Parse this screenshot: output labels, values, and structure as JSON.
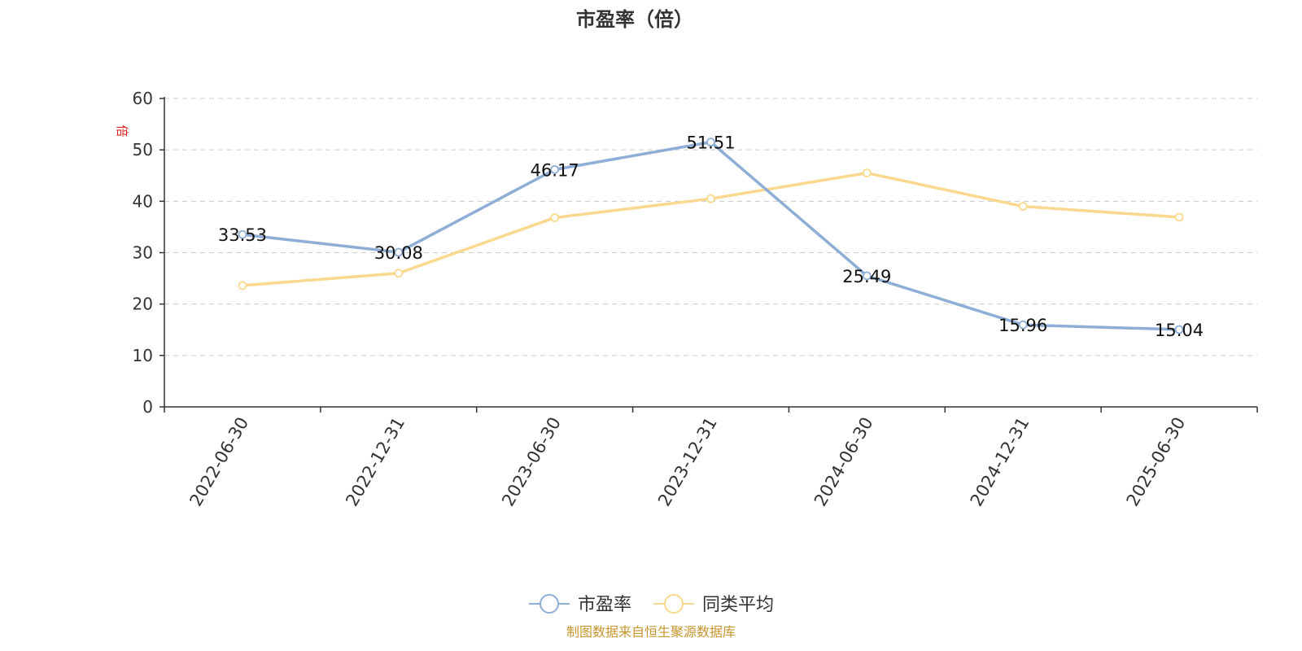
{
  "colors": {
    "pe": "#8eaed8",
    "avg": "#fbd88f",
    "unit": "#e0201e",
    "source": "#c8952f"
  },
  "chart_data": {
    "type": "line",
    "title": "市盈率（倍）",
    "ylabel": "倍",
    "ylim": [
      0,
      60
    ],
    "yticks": [
      0,
      10,
      20,
      30,
      40,
      50,
      60
    ],
    "grid": true,
    "categories": [
      "2022-06-30",
      "2022-12-31",
      "2023-06-30",
      "2023-12-31",
      "2024-06-30",
      "2024-12-31",
      "2025-06-30"
    ],
    "series": [
      {
        "name": "市盈率",
        "values": [
          33.53,
          30.08,
          46.17,
          51.51,
          25.49,
          15.96,
          15.04
        ],
        "labels": [
          "33.53",
          "30.08",
          "46.17",
          "51.51",
          "25.49",
          "15.96",
          "15.04"
        ]
      },
      {
        "name": "同类平均",
        "values": [
          23.6,
          26.0,
          36.8,
          40.5,
          45.5,
          39.0,
          36.9
        ]
      }
    ],
    "legend_position": "bottom-center"
  },
  "source": "制图数据来自恒生聚源数据库"
}
